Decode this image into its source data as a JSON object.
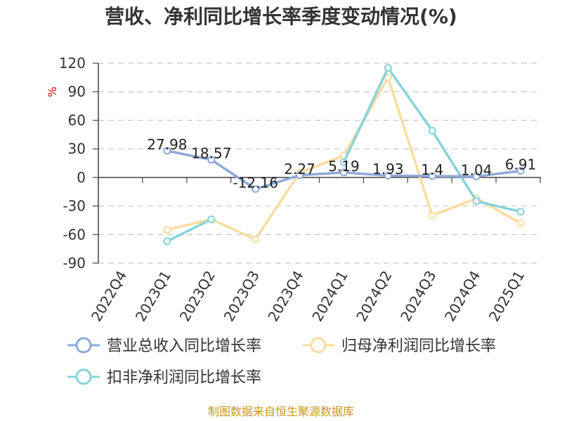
{
  "chart_data": {
    "type": "line",
    "title": "营收、净利同比增长率季度变动情况(%)",
    "ylabel": "%",
    "ylim": [
      -90,
      120
    ],
    "yticks": [
      120,
      90,
      60,
      30,
      0,
      -30,
      -60,
      -90
    ],
    "categories": [
      "2022Q4",
      "2023Q1",
      "2023Q2",
      "2023Q3",
      "2023Q4",
      "2024Q1",
      "2024Q2",
      "2024Q3",
      "2024Q4",
      "2025Q1"
    ],
    "grid": true,
    "legend_position": "bottom",
    "series": [
      {
        "name": "营业总收入同比增长率",
        "color": "#8fa9d9",
        "values": [
          null,
          27.98,
          18.57,
          -12.16,
          2.27,
          5.19,
          1.93,
          1.4,
          1.04,
          6.91
        ],
        "labels": [
          "",
          "27.98",
          "18.57",
          "-12.16",
          "2.27",
          "5.19",
          "1.93",
          "1.4",
          "1.04",
          "6.91"
        ]
      },
      {
        "name": "归母净利润同比增长率",
        "color": "#f9dc9e",
        "values": [
          null,
          -55,
          -44,
          -65,
          5,
          23,
          105,
          -40,
          -22,
          -48
        ]
      },
      {
        "name": "扣非净利润同比增长率",
        "color": "#86d4d8",
        "values": [
          null,
          -67,
          -44,
          null,
          null,
          16,
          115,
          49,
          -25,
          -36
        ]
      }
    ],
    "source": "制图数据来自恒生聚源数据库"
  }
}
